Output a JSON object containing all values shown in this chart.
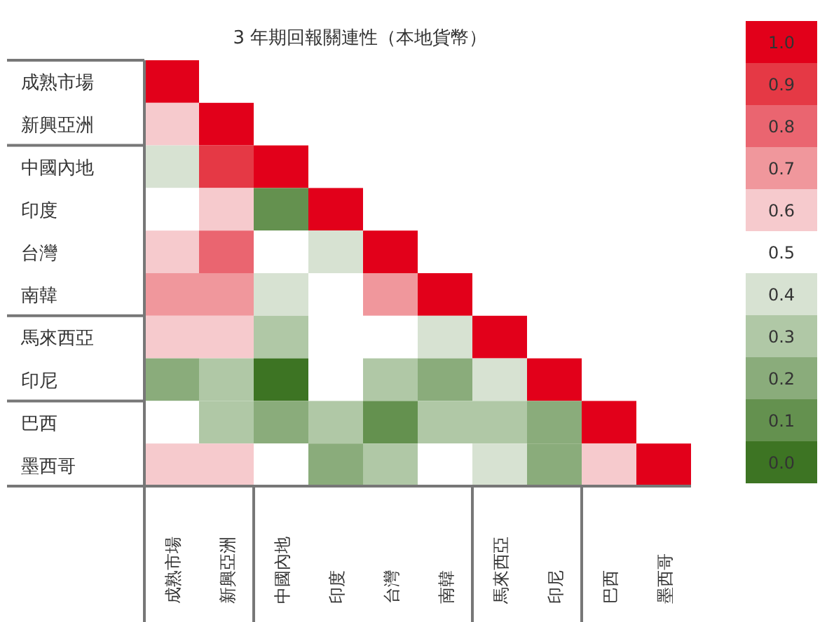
{
  "chart_data": {
    "type": "heatmap",
    "title": "3 年期回報關連性（本地貨幣）",
    "categories": [
      "成熟市場",
      "新興亞洲",
      "中國內地",
      "印度",
      "台灣",
      "南韓",
      "馬來西亞",
      "印尼",
      "巴西",
      "墨西哥"
    ],
    "y_categories": [
      "成熟市場",
      "新興亞洲",
      "中國內地",
      "印度",
      "台灣",
      "南韓",
      "馬來西亞",
      "印尼",
      "巴西",
      "墨西哥"
    ],
    "cells": [
      [
        1.0,
        null,
        null,
        null,
        null,
        null,
        null,
        null,
        null,
        null
      ],
      [
        0.6,
        1.0,
        null,
        null,
        null,
        null,
        null,
        null,
        null,
        null
      ],
      [
        0.4,
        0.9,
        1.0,
        null,
        null,
        null,
        null,
        null,
        null,
        null
      ],
      [
        0.5,
        0.6,
        0.1,
        1.0,
        null,
        null,
        null,
        null,
        null,
        null
      ],
      [
        0.6,
        0.8,
        0.5,
        0.4,
        1.0,
        null,
        null,
        null,
        null,
        null
      ],
      [
        0.7,
        0.7,
        0.4,
        0.5,
        0.7,
        1.0,
        null,
        null,
        null,
        null
      ],
      [
        0.6,
        0.6,
        0.3,
        0.5,
        0.5,
        0.4,
        1.0,
        null,
        null,
        null
      ],
      [
        0.2,
        0.3,
        0.0,
        0.5,
        0.3,
        0.2,
        0.4,
        1.0,
        null,
        null
      ],
      [
        0.5,
        0.3,
        0.2,
        0.3,
        0.1,
        0.3,
        0.3,
        0.2,
        1.0,
        null
      ],
      [
        0.6,
        0.6,
        0.5,
        0.2,
        0.3,
        0.5,
        0.4,
        0.2,
        0.6,
        1.0
      ]
    ],
    "clim": [
      -0.05,
      1.05
    ],
    "cticks": [
      {
        "value": 0,
        "label": "0.0"
      },
      {
        "value": 0.1,
        "label": "0.1"
      },
      {
        "value": 0.2,
        "label": "0.2"
      },
      {
        "value": 0.3,
        "label": "0.3"
      },
      {
        "value": 0.4,
        "label": "0.4"
      },
      {
        "value": 0.5,
        "label": "0.5"
      },
      {
        "value": 0.6,
        "label": "0.6"
      },
      {
        "value": 0.7,
        "label": "0.7"
      },
      {
        "value": 0.8,
        "label": "0.8"
      },
      {
        "value": 0.9,
        "label": "0.9"
      },
      {
        "value": 1,
        "label": "1.0"
      }
    ]
  }
}
